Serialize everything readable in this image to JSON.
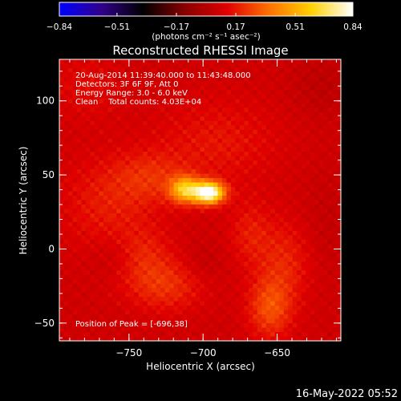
{
  "chart_data": {
    "type": "heatmap",
    "title": "Reconstructed RHESSI Image",
    "colorbar": {
      "ticks": [
        "−0.84",
        "−0.51",
        "−0.17",
        "0.17",
        "0.51",
        "0.84"
      ],
      "range": [
        -0.84,
        0.84
      ],
      "label": "(photons cm⁻² s⁻¹ asec⁻²)",
      "colors": [
        "#0000ff",
        "#30008a",
        "#000000",
        "#8a0000",
        "#e00000",
        "#ff7000",
        "#ffd000",
        "#ffffff"
      ]
    },
    "xlabel": "Heliocentric X (arcsec)",
    "ylabel": "Heliocentric Y (arcsec)",
    "xlim": [
      -797,
      -607
    ],
    "ylim": [
      -62,
      128
    ],
    "xticks": [
      -750,
      -700,
      -650
    ],
    "xtick_labels": [
      "−750",
      "−700",
      "−650"
    ],
    "yticks": [
      -50,
      0,
      50,
      100
    ],
    "ytick_labels": [
      "−50",
      "0",
      "50",
      "100"
    ],
    "annotations": [
      "20-Aug-2014 11:39:40.000 to 11:43:48.000",
      "Detectors: 3F 6F 9F, Att 0",
      "Energy Range: 3.0 - 6.0 keV",
      "Clean    Total counts: 4.03E+04"
    ],
    "peak_label": "Position of Peak = [-696,38]",
    "peak": [
      -696,
      38
    ],
    "sources": [
      {
        "x": -696,
        "y": 38,
        "amp": 0.84,
        "sx": 7,
        "sy": 5
      },
      {
        "x": -712,
        "y": 40,
        "amp": 0.5,
        "sx": 7,
        "sy": 6
      },
      {
        "x": -735,
        "y": 48,
        "amp": 0.12,
        "sx": 18,
        "sy": 12
      },
      {
        "x": -765,
        "y": 30,
        "amp": 0.1,
        "sx": 22,
        "sy": 22
      },
      {
        "x": -690,
        "y": 72,
        "amp": 0.09,
        "sx": 30,
        "sy": 20
      },
      {
        "x": -725,
        "y": -25,
        "amp": 0.14,
        "sx": 18,
        "sy": 12
      },
      {
        "x": -740,
        "y": -5,
        "amp": 0.1,
        "sx": 14,
        "sy": 14
      },
      {
        "x": -655,
        "y": -40,
        "amp": 0.2,
        "sx": 10,
        "sy": 14
      },
      {
        "x": -645,
        "y": -10,
        "amp": 0.12,
        "sx": 12,
        "sy": 20
      },
      {
        "x": -668,
        "y": 10,
        "amp": 0.1,
        "sx": 10,
        "sy": 16
      },
      {
        "x": -780,
        "y": 110,
        "amp": 0.06,
        "sx": 16,
        "sy": 16
      },
      {
        "x": -760,
        "y": -5,
        "amp": -0.05,
        "sx": 10,
        "sy": 10
      },
      {
        "x": -700,
        "y": -10,
        "amp": -0.04,
        "sx": 10,
        "sy": 10
      },
      {
        "x": -620,
        "y": 110,
        "amp": -0.05,
        "sx": 15,
        "sy": 15
      },
      {
        "x": -615,
        "y": 20,
        "amp": -0.03,
        "sx": 12,
        "sy": 25
      }
    ],
    "background": 0.07
  },
  "footer": {
    "timestamp": "16-May-2022 05:52"
  }
}
